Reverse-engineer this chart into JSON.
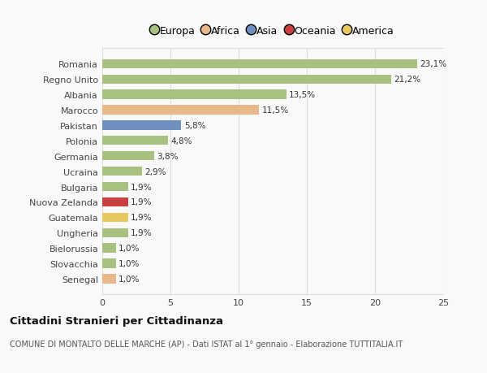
{
  "categories": [
    "Romania",
    "Regno Unito",
    "Albania",
    "Marocco",
    "Pakistan",
    "Polonia",
    "Germania",
    "Ucraina",
    "Bulgaria",
    "Nuova Zelanda",
    "Guatemala",
    "Ungheria",
    "Bielorussia",
    "Slovacchia",
    "Senegal"
  ],
  "values": [
    23.1,
    21.2,
    13.5,
    11.5,
    5.8,
    4.8,
    3.8,
    2.9,
    1.9,
    1.9,
    1.9,
    1.9,
    1.0,
    1.0,
    1.0
  ],
  "labels": [
    "23,1%",
    "21,2%",
    "13,5%",
    "11,5%",
    "5,8%",
    "4,8%",
    "3,8%",
    "2,9%",
    "1,9%",
    "1,9%",
    "1,9%",
    "1,9%",
    "1,0%",
    "1,0%",
    "1,0%"
  ],
  "bar_colors": [
    "#a8c080",
    "#a8c080",
    "#a8c080",
    "#e8b88a",
    "#7090c0",
    "#a8c080",
    "#a8c080",
    "#a8c080",
    "#a8c080",
    "#c84040",
    "#e8c860",
    "#a8c080",
    "#a8c080",
    "#a8c080",
    "#e8b88a"
  ],
  "legend_items": [
    {
      "label": "Europa",
      "color": "#a8c080"
    },
    {
      "label": "Africa",
      "color": "#e8b88a"
    },
    {
      "label": "Asia",
      "color": "#7090c0"
    },
    {
      "label": "Oceania",
      "color": "#c84040"
    },
    {
      "label": "America",
      "color": "#e8c860"
    }
  ],
  "title": "Cittadini Stranieri per Cittadinanza",
  "subtitle": "COMUNE DI MONTALTO DELLE MARCHE (AP) - Dati ISTAT al 1° gennaio - Elaborazione TUTTITALIA.IT",
  "xlim": [
    0,
    25
  ],
  "xticks": [
    0,
    5,
    10,
    15,
    20,
    25
  ],
  "background_color": "#f9f9f9",
  "grid_color": "#dddddd",
  "bar_height": 0.6
}
